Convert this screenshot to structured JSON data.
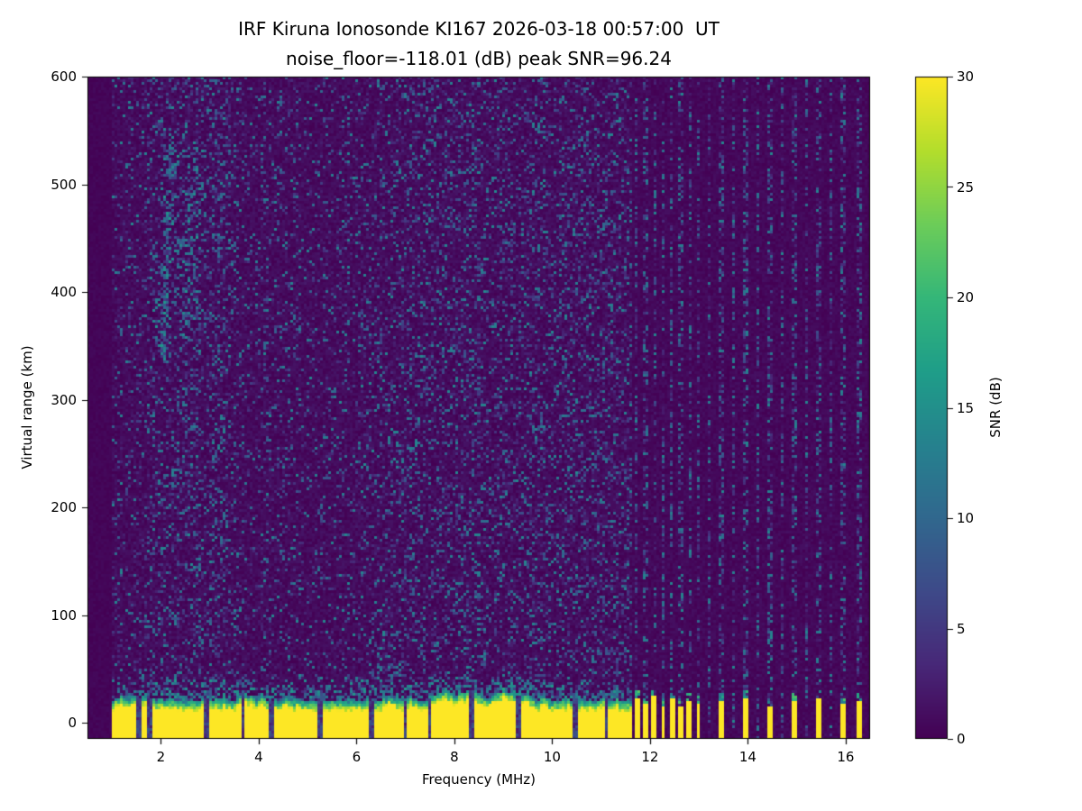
{
  "chart_data": {
    "type": "heatmap",
    "title_line1": "IRF Kiruna Ionosonde KI167 2026-03-18 00:57:00  UT",
    "title_line2": "noise_floor=-118.01 (dB) peak SNR=96.24",
    "station": "IRF Kiruna Ionosonde KI167",
    "timestamp_ut": "2026-03-18 00:57:00",
    "noise_floor_db": -118.01,
    "peak_snr_db": 96.24,
    "xlabel": "Frequency (MHz)",
    "ylabel": "Virtual range (km)",
    "colorbar_label": "SNR (dB)",
    "colormap": "viridis",
    "xlim": [
      0.5,
      16.5
    ],
    "ylim": [
      -15,
      600
    ],
    "xticks": [
      2,
      4,
      6,
      8,
      10,
      12,
      14,
      16
    ],
    "yticks": [
      0,
      100,
      200,
      300,
      400,
      500,
      600
    ],
    "colorbar_ticks": [
      0,
      5,
      10,
      15,
      20,
      25,
      30
    ],
    "colorbar_range": [
      0,
      30
    ],
    "grid": false,
    "colors": {
      "figure_background": "#ffffff",
      "heatmap_background": "#440154",
      "peak_color": "#fde725",
      "text": "#000000"
    },
    "features": {
      "signal_freq_range_mhz": [
        1.0,
        16.45
      ],
      "ground_echo_band": {
        "freq_range_mhz": [
          1.0,
          11.62
        ],
        "top_km_mean": 30,
        "fringe_km": 22,
        "snr_db": 30,
        "notch_freqs_mhz": [
          1.55,
          1.78,
          2.95,
          3.68,
          4.28,
          5.25,
          6.3,
          7.0,
          7.5,
          8.35,
          9.3,
          10.45,
          11.1
        ]
      },
      "comb_bars": [
        {
          "f_mhz": 11.72,
          "top_km": 22
        },
        {
          "f_mhz": 11.9,
          "top_km": 18
        },
        {
          "f_mhz": 12.08,
          "top_km": 24
        },
        {
          "f_mhz": 12.26,
          "top_km": 16
        },
        {
          "f_mhz": 12.44,
          "top_km": 22
        },
        {
          "f_mhz": 12.62,
          "top_km": 14
        },
        {
          "f_mhz": 12.8,
          "top_km": 20
        },
        {
          "f_mhz": 12.98,
          "top_km": 18
        },
        {
          "f_mhz": 13.45,
          "top_km": 20
        },
        {
          "f_mhz": 13.95,
          "top_km": 22
        },
        {
          "f_mhz": 14.45,
          "top_km": 14
        },
        {
          "f_mhz": 14.95,
          "top_km": 20
        },
        {
          "f_mhz": 15.45,
          "top_km": 22
        },
        {
          "f_mhz": 15.95,
          "top_km": 18
        },
        {
          "f_mhz": 16.28,
          "top_km": 20
        }
      ],
      "rfi_column_freqs_mhz": [
        11.72,
        11.9,
        12.08,
        12.26,
        12.44,
        12.62,
        12.8,
        12.98,
        13.2,
        13.45,
        13.7,
        13.95,
        14.2,
        14.45,
        14.7,
        14.95,
        15.2,
        15.45,
        15.7,
        15.95,
        16.28
      ],
      "ionospheric_echo": {
        "freq_range_mhz": [
          1.85,
          3.25
        ],
        "virtual_range_km": [
          330,
          535
        ],
        "snr_db_range": [
          5,
          16
        ],
        "branches": [
          {
            "f_base_mhz": 2.02,
            "r_base_km": 330,
            "slope_mhz_per_km": 0.0011,
            "sigma_mhz": 0.09,
            "density": 0.55
          },
          {
            "f_base_mhz": 2.5,
            "r_base_km": 355,
            "slope_mhz_per_km": 0.0016,
            "sigma_mhz": 0.12,
            "density": 0.3
          }
        ]
      },
      "background_speckle": {
        "probability": 0.2,
        "max_snr_db": 14,
        "enhanced_freq_range_mhz": [
          1.25,
          3.6
        ]
      }
    }
  }
}
